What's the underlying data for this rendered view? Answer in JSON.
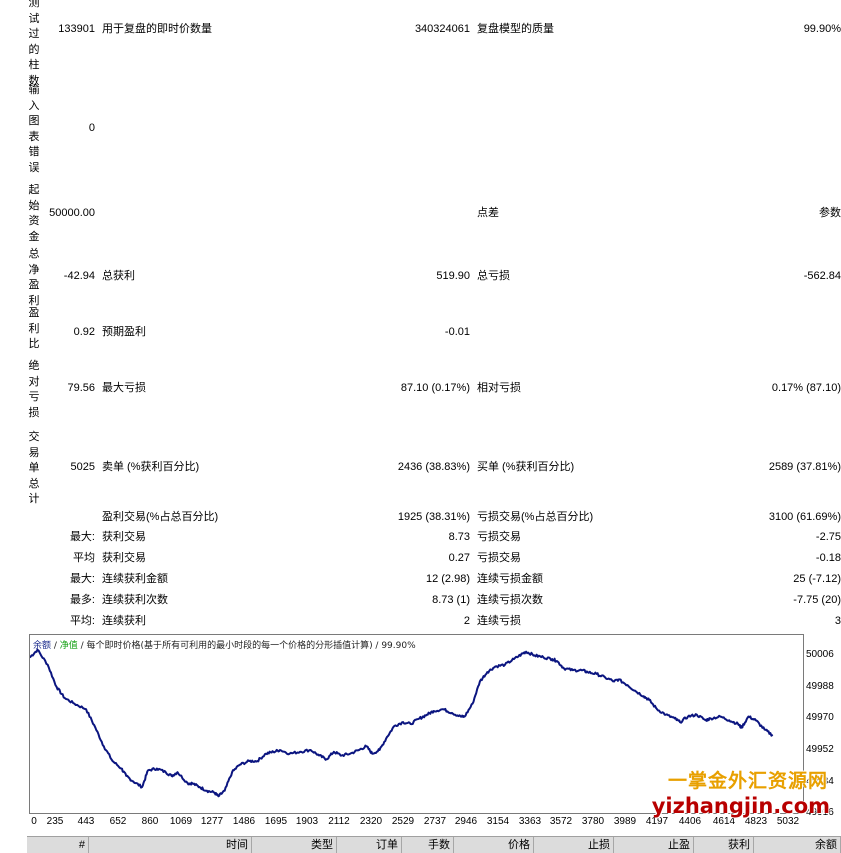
{
  "left_labels": [
    "测试过的柱数",
    "输入图表错误",
    "起始资金",
    "总净盈利",
    "盈利比",
    "绝对亏损",
    "交易单总计"
  ],
  "rows": {
    "bars": {
      "value": "133901",
      "label": "用于复盘的即时价数量",
      "mid": "340324061",
      "label2": "复盘模型的质量",
      "right": "99.90%"
    },
    "errors": {
      "value": "0"
    },
    "deposit": {
      "value": "50000.00",
      "label2": "点差",
      "right": "参数"
    },
    "net": {
      "value": "-42.94",
      "label": "总获利",
      "mid": "519.90",
      "label2": "总亏损",
      "right": "-562.84"
    },
    "pf": {
      "value": "0.92",
      "label": "预期盈利",
      "mid": "-0.01"
    },
    "abs": {
      "value": "79.56",
      "label": "最大亏损",
      "mid": "87.10 (0.17%)",
      "label2": "相对亏损",
      "right": "0.17% (87.10)"
    },
    "total": {
      "value": "5025",
      "label": "卖单 (%获利百分比)",
      "mid": "2436 (38.83%)",
      "label2": "买单 (%获利百分比)",
      "right": "2589 (37.81%)"
    },
    "profit_trades": {
      "label": "盈利交易(%占总百分比)",
      "mid": "1925 (38.31%)",
      "label2": "亏损交易(%占总百分比)",
      "right": "3100 (61.69%)"
    },
    "largest": {
      "prefix": "最大:",
      "label": "获利交易",
      "mid": "8.73",
      "label2": "亏损交易",
      "right": "-2.75"
    },
    "average": {
      "prefix": "平均",
      "label": "获利交易",
      "mid": "0.27",
      "label2": "亏损交易",
      "right": "-0.18"
    },
    "max_consec": {
      "prefix": "最大:",
      "label": "连续获利金额",
      "mid": "12 (2.98)",
      "label2": "连续亏损金额",
      "right": "25 (-7.12)"
    },
    "max_consec2": {
      "prefix": "最多:",
      "label": "连续获利次数",
      "mid": "8.73 (1)",
      "label2": "连续亏损次数",
      "right": "-7.75 (20)"
    },
    "avg_consec": {
      "prefix": "平均:",
      "label": "连续获利",
      "mid": "2",
      "label2": "连续亏损",
      "right": "3"
    }
  },
  "chart": {
    "legend_balance": "余额",
    "legend_sep1": " / ",
    "legend_equity": "净值",
    "legend_rest": " / 每个即时价格(基于所有可利用的最小时段的每一个价格的分形插值计算) / 99.90%",
    "line_color": "#0b1580",
    "y_ticks": [
      "50006",
      "49988",
      "49970",
      "49952",
      "49934",
      "49916"
    ],
    "x_ticks": [
      "0",
      "235",
      "443",
      "652",
      "860",
      "1069",
      "1277",
      "1486",
      "1695",
      "1903",
      "2112",
      "2320",
      "2529",
      "2737",
      "2946",
      "3154",
      "3363",
      "3572",
      "3780",
      "3989",
      "4197",
      "4406",
      "4614",
      "4823",
      "5032"
    ],
    "chart_data": {
      "type": "line",
      "x": [
        0,
        50,
        120,
        180,
        235,
        300,
        380,
        443,
        500,
        560,
        620,
        652,
        700,
        760,
        800,
        860,
        920,
        960,
        1000,
        1069,
        1100,
        1150,
        1200,
        1250,
        1277,
        1320,
        1370,
        1420,
        1486,
        1540,
        1600,
        1650,
        1695,
        1760,
        1830,
        1903,
        1960,
        2010,
        2060,
        2112,
        2170,
        2230,
        2280,
        2320,
        2370,
        2420,
        2470,
        2529,
        2580,
        2640,
        2690,
        2737,
        2800,
        2860,
        2920,
        2946,
        3000,
        3050,
        3100,
        3154,
        3220,
        3280,
        3340,
        3363,
        3420,
        3480,
        3540,
        3572,
        3620,
        3680,
        3740,
        3780,
        3840,
        3900,
        3960,
        3989,
        4050,
        4100,
        4160,
        4197,
        4250,
        4310,
        4370,
        4406,
        4460,
        4520,
        4580,
        4614,
        4680,
        4740,
        4800,
        4823,
        4870,
        4920,
        4980,
        5032
      ],
      "values": [
        50000,
        50004,
        49996,
        49984,
        49978,
        49975,
        49972,
        49962,
        49952,
        49944,
        49940,
        49936,
        49933,
        49930,
        49939,
        49940,
        49938,
        49936,
        49938,
        49932,
        49932,
        49930,
        49928,
        49927,
        49925,
        49928,
        49938,
        49942,
        49944,
        49944,
        49948,
        49949,
        49950,
        49948,
        49949,
        49950,
        49947,
        49945,
        49949,
        49947,
        49948,
        49950,
        49952,
        49948,
        49950,
        49957,
        49963,
        49965,
        49964,
        49967,
        49969,
        49971,
        49972,
        49970,
        49968,
        49968,
        49975,
        49987,
        49992,
        49995,
        49996,
        49999,
        50002,
        50003,
        50001,
        50000,
        49999,
        49998,
        49994,
        49993,
        49993,
        49992,
        49991,
        49989,
        49987,
        49988,
        49985,
        49982,
        49979,
        49977,
        49972,
        49969,
        49967,
        49965,
        49968,
        49969,
        49966,
        49967,
        49968,
        49966,
        49964,
        49962,
        49968,
        49966,
        49961,
        49958
      ],
      "ylim": [
        49916,
        50012
      ],
      "xlim": [
        0,
        5240
      ]
    }
  },
  "watermark": {
    "line1": "一掌金外汇资源网",
    "line2": "yizhangjin.com"
  },
  "table_headers": [
    "#",
    "时间",
    "类型",
    "订单",
    "手数",
    "价格",
    "止损",
    "止盈",
    "获利",
    "余额"
  ]
}
